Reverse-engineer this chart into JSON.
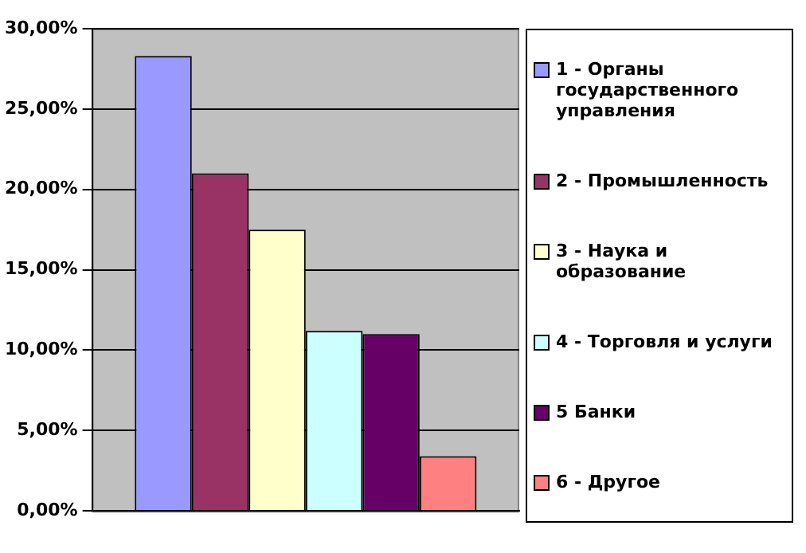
{
  "chart_data": {
    "type": "bar",
    "categories": [
      null
    ],
    "series": [
      {
        "name": "1 - Органы государственного управления",
        "color": "#9999ff",
        "values": [
          28.3
        ]
      },
      {
        "name": "2 - Промышленность",
        "color": "#993366",
        "values": [
          21.0
        ]
      },
      {
        "name": "3 - Наука и образование",
        "color": "#ffffcc",
        "values": [
          17.5
        ]
      },
      {
        "name": "4 - Торговля и услуги",
        "color": "#ccffff",
        "values": [
          11.2
        ]
      },
      {
        "name": "5  Банки",
        "color": "#660066",
        "values": [
          11.0
        ]
      },
      {
        "name": "6 - Другое",
        "color": "#ff8080",
        "values": [
          3.4
        ]
      }
    ],
    "ylim": [
      0,
      30
    ],
    "yticks": [
      {
        "value": 0,
        "label": "0,00%"
      },
      {
        "value": 5,
        "label": "5,00%"
      },
      {
        "value": 10,
        "label": "10,00%"
      },
      {
        "value": 15,
        "label": "15,00%"
      },
      {
        "value": 20,
        "label": "20,00%"
      },
      {
        "value": 25,
        "label": "25,00%"
      },
      {
        "value": 30,
        "label": "30,00%"
      }
    ],
    "grid": "y",
    "legend": "right"
  }
}
